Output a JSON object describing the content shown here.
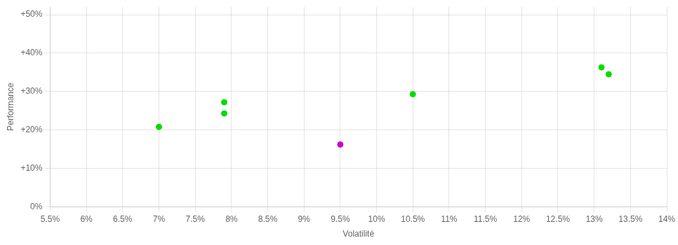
{
  "chart_data": {
    "type": "scatter",
    "xlabel": "Volatilité",
    "ylabel": "Performance",
    "xlim": [
      0.055,
      0.14
    ],
    "ylim": [
      0.0,
      0.52
    ],
    "xticks": [
      {
        "value": 0.055,
        "label": "5.5%"
      },
      {
        "value": 0.06,
        "label": "6%"
      },
      {
        "value": 0.065,
        "label": "6.5%"
      },
      {
        "value": 0.07,
        "label": "7%"
      },
      {
        "value": 0.075,
        "label": "7.5%"
      },
      {
        "value": 0.08,
        "label": "8%"
      },
      {
        "value": 0.085,
        "label": "8.5%"
      },
      {
        "value": 0.09,
        "label": "9%"
      },
      {
        "value": 0.095,
        "label": "9.5%"
      },
      {
        "value": 0.1,
        "label": "10%"
      },
      {
        "value": 0.105,
        "label": "10.5%"
      },
      {
        "value": 0.11,
        "label": "11%"
      },
      {
        "value": 0.115,
        "label": "11.5%"
      },
      {
        "value": 0.12,
        "label": "12%"
      },
      {
        "value": 0.125,
        "label": "12.5%"
      },
      {
        "value": 0.13,
        "label": "13%"
      },
      {
        "value": 0.135,
        "label": "13.5%"
      },
      {
        "value": 0.14,
        "label": "14%"
      }
    ],
    "yticks": [
      {
        "value": 0.0,
        "label": "0%"
      },
      {
        "value": 0.1,
        "label": "+10%"
      },
      {
        "value": 0.2,
        "label": "+20%"
      },
      {
        "value": 0.3,
        "label": "+30%"
      },
      {
        "value": 0.4,
        "label": "+40%"
      },
      {
        "value": 0.5,
        "label": "+50%"
      }
    ],
    "grid": true,
    "series": [
      {
        "color": "#00dd00",
        "x": [
          0.07,
          0.079,
          0.079,
          0.105,
          0.131,
          0.132
        ],
        "values": [
          0.208,
          0.272,
          0.243,
          0.293,
          0.363,
          0.345
        ]
      },
      {
        "color": "#cc00cc",
        "x": [
          0.095
        ],
        "values": [
          0.162
        ]
      }
    ]
  }
}
